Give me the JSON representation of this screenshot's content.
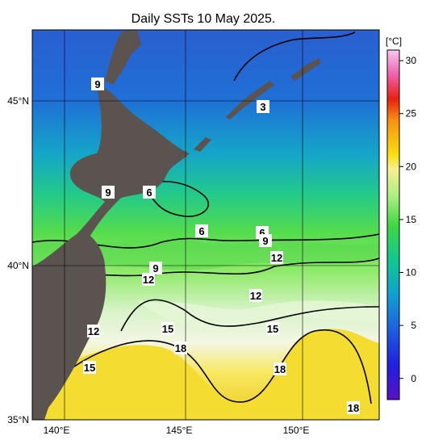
{
  "title": "Daily SSTs 10 May 2025.",
  "longitude_labels": [
    "140°E",
    "145°E",
    "150°E"
  ],
  "latitude_labels": [
    "45°N",
    "40°N",
    "35°N"
  ],
  "colorbar": {
    "unit": "[°C]",
    "range": [
      -2,
      31
    ],
    "ticks": [
      0,
      5,
      10,
      15,
      20,
      25,
      30
    ]
  },
  "contour_labels": [
    "9",
    "3",
    "9",
    "6",
    "6",
    "6",
    "9",
    "12",
    "9",
    "12",
    "12",
    "12",
    "15",
    "15",
    "18",
    "15",
    "18",
    "18"
  ]
}
